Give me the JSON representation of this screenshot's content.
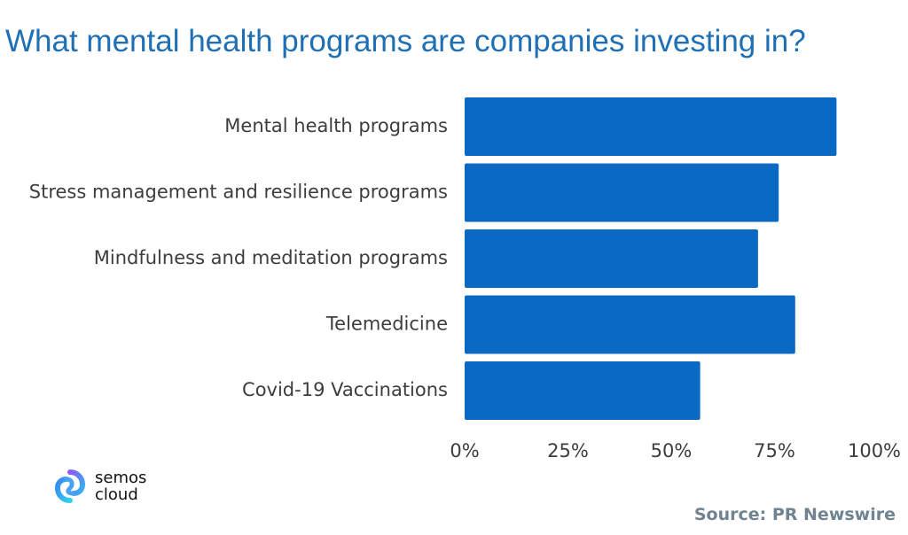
{
  "colors": {
    "title": "#1f6fb4",
    "bar": "#0a69c2",
    "source": "#6f8391",
    "label": "#3d3d3d"
  },
  "chart_data": {
    "type": "bar",
    "orientation": "horizontal",
    "title": "What mental health programs are companies investing in?",
    "categories": [
      "Mental health programs",
      "Stress management and resilience programs",
      "Mindfulness and meditation programs",
      "Telemedicine",
      "Covid-19 Vaccinations"
    ],
    "values": [
      90,
      76,
      71,
      80,
      57
    ],
    "unit": "%",
    "xlim": [
      0,
      100
    ],
    "xticks": [
      "0%",
      "25%",
      "50%",
      "75%",
      "100%"
    ],
    "grid": false,
    "legend": "none"
  },
  "source": "Source: PR Newswire",
  "logo": {
    "line1": "semos",
    "line2": "cloud",
    "icon": "semos-cloud-logo-icon"
  }
}
